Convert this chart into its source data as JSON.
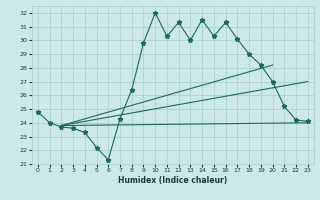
{
  "xlabel": "Humidex (Indice chaleur)",
  "xlim": [
    -0.5,
    23.5
  ],
  "ylim": [
    21,
    32.5
  ],
  "yticks": [
    21,
    22,
    23,
    24,
    25,
    26,
    27,
    28,
    29,
    30,
    31,
    32
  ],
  "xticks": [
    0,
    1,
    2,
    3,
    4,
    5,
    6,
    7,
    8,
    9,
    10,
    11,
    12,
    13,
    14,
    15,
    16,
    17,
    18,
    19,
    20,
    21,
    22,
    23
  ],
  "bg_color": "#cce8e8",
  "line_color": "#1a6b5a",
  "grid_color": "#aacece",
  "series1": {
    "x": [
      0,
      1,
      2,
      3,
      4,
      5,
      6,
      7,
      8,
      9,
      10,
      11,
      12,
      13,
      14,
      15,
      16,
      17,
      18,
      19,
      20,
      21,
      22,
      23
    ],
    "y": [
      24.8,
      24.0,
      23.7,
      23.6,
      23.3,
      22.2,
      21.3,
      24.3,
      26.4,
      29.8,
      32.0,
      30.3,
      31.3,
      30.0,
      31.5,
      30.3,
      31.3,
      30.1,
      29.0,
      28.2,
      27.0,
      25.2,
      24.2,
      24.1
    ]
  },
  "line_flat": {
    "x": [
      2,
      23
    ],
    "y": [
      23.8,
      24.0
    ]
  },
  "line_mid": {
    "x": [
      2,
      23
    ],
    "y": [
      23.8,
      27.0
    ]
  },
  "line_top": {
    "x": [
      2,
      20
    ],
    "y": [
      23.8,
      28.2
    ]
  }
}
